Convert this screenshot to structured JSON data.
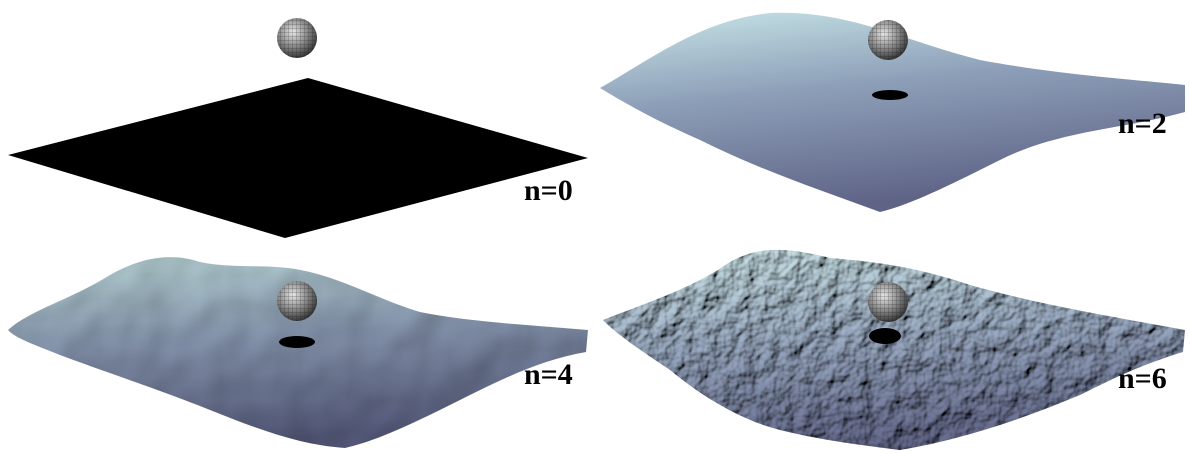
{
  "panels": [
    {
      "label": "n=0"
    },
    {
      "label": "n=2"
    },
    {
      "label": "n=4"
    },
    {
      "label": "n=6"
    }
  ]
}
